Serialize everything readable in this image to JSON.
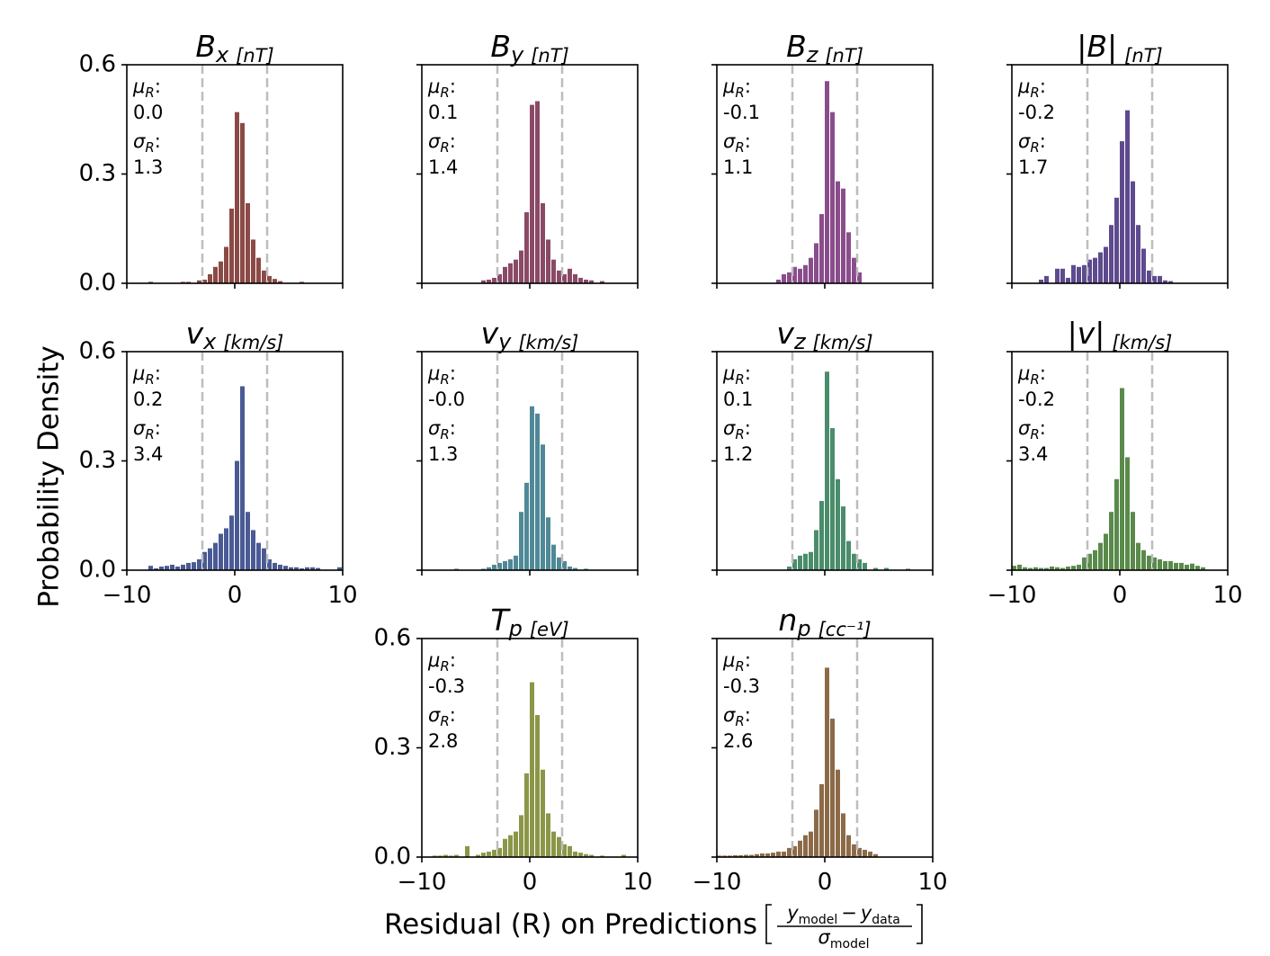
{
  "figure": {
    "ylabel": "Probability Density",
    "xlabel_text": "Residual (R) on Predictions",
    "xlabel_formula": {
      "numerator_main": "y",
      "numerator_main_sub": "model",
      "minus": "−",
      "numerator_second": "y",
      "numerator_second_sub": "data",
      "denominator": "σ",
      "denominator_sub": "model"
    },
    "stat_labels": {
      "mu": "μ",
      "sigma": "σ",
      "sub": "R",
      "colon": ":"
    }
  },
  "chart_data": [
    {
      "type": "bar",
      "symbol": "B",
      "subscript": "x",
      "unit": "[nT]",
      "color": "#8b4a45",
      "mu_R": "0.0",
      "sigma_R": "1.3",
      "xlim": [
        -10,
        10
      ],
      "ylim": [
        0,
        0.6
      ],
      "xticks": [
        -10,
        0,
        10
      ],
      "yticks": [
        0.0,
        0.3,
        0.6
      ],
      "threshold_lines": [
        -3,
        3
      ],
      "bin_width": 0.5,
      "bins": [
        [
          -8,
          0.004
        ],
        [
          -5,
          0.004
        ],
        [
          -4.5,
          0.004
        ],
        [
          -3.5,
          0.008
        ],
        [
          -3,
          0.01
        ],
        [
          -2.5,
          0.025
        ],
        [
          -2,
          0.045
        ],
        [
          -1.5,
          0.06
        ],
        [
          -1,
          0.1
        ],
        [
          -0.5,
          0.205
        ],
        [
          0,
          0.47
        ],
        [
          0.5,
          0.44
        ],
        [
          1,
          0.22
        ],
        [
          1.5,
          0.12
        ],
        [
          2,
          0.07
        ],
        [
          2.5,
          0.035
        ],
        [
          3,
          0.02
        ],
        [
          3.5,
          0.012
        ],
        [
          4,
          0.006
        ],
        [
          6,
          0.004
        ]
      ]
    },
    {
      "type": "bar",
      "symbol": "B",
      "subscript": "y",
      "unit": "[nT]",
      "color": "#8a4a66",
      "mu_R": "0.1",
      "sigma_R": "1.4",
      "xlim": [
        -10,
        10
      ],
      "ylim": [
        0,
        0.6
      ],
      "xticks": [
        -10,
        0,
        10
      ],
      "yticks": [
        0.0,
        0.3,
        0.6
      ],
      "threshold_lines": [
        -3,
        3
      ],
      "bin_width": 0.5,
      "bins": [
        [
          -4.5,
          0.008
        ],
        [
          -4,
          0.01
        ],
        [
          -3.5,
          0.015
        ],
        [
          -3,
          0.025
        ],
        [
          -2.5,
          0.045
        ],
        [
          -2,
          0.055
        ],
        [
          -1.5,
          0.065
        ],
        [
          -1,
          0.09
        ],
        [
          -0.5,
          0.195
        ],
        [
          0,
          0.49
        ],
        [
          0.5,
          0.5
        ],
        [
          1,
          0.22
        ],
        [
          1.5,
          0.12
        ],
        [
          2,
          0.065
        ],
        [
          2.5,
          0.035
        ],
        [
          3,
          0.025
        ],
        [
          3.5,
          0.04
        ],
        [
          4,
          0.025
        ],
        [
          4.5,
          0.015
        ],
        [
          5,
          0.01
        ],
        [
          5.5,
          0.008
        ],
        [
          6.5,
          0.006
        ]
      ]
    },
    {
      "type": "bar",
      "symbol": "B",
      "subscript": "z",
      "unit": "[nT]",
      "color": "#8a4d8c",
      "mu_R": "-0.1",
      "sigma_R": "1.1",
      "xlim": [
        -10,
        10
      ],
      "ylim": [
        0,
        0.6
      ],
      "xticks": [
        -10,
        0,
        10
      ],
      "yticks": [
        0.0,
        0.3,
        0.6
      ],
      "threshold_lines": [
        -3,
        3
      ],
      "bin_width": 0.5,
      "bins": [
        [
          -4.5,
          0.01
        ],
        [
          -4,
          0.025
        ],
        [
          -3.5,
          0.03
        ],
        [
          -3,
          0.045
        ],
        [
          -2.5,
          0.04
        ],
        [
          -2,
          0.05
        ],
        [
          -1.5,
          0.07
        ],
        [
          -1,
          0.11
        ],
        [
          -0.5,
          0.19
        ],
        [
          0,
          0.555
        ],
        [
          0.5,
          0.47
        ],
        [
          1,
          0.28
        ],
        [
          1.5,
          0.26
        ],
        [
          2,
          0.14
        ],
        [
          2.5,
          0.07
        ],
        [
          3,
          0.03
        ]
      ]
    },
    {
      "type": "bar",
      "symbol": "|B|",
      "subscript": "",
      "unit": "[nT]",
      "color": "#5e4a8e",
      "mu_R": "-0.2",
      "sigma_R": "1.7",
      "xlim": [
        -10,
        10
      ],
      "ylim": [
        0,
        0.6
      ],
      "xticks": [
        -10,
        0,
        10
      ],
      "yticks": [
        0.0,
        0.3,
        0.6
      ],
      "threshold_lines": [
        -3,
        3
      ],
      "bin_width": 0.5,
      "bins": [
        [
          -7.5,
          0.01
        ],
        [
          -7,
          0.02
        ],
        [
          -6,
          0.04
        ],
        [
          -5.5,
          0.04
        ],
        [
          -5,
          0.015
        ],
        [
          -4.5,
          0.05
        ],
        [
          -4,
          0.045
        ],
        [
          -3.5,
          0.05
        ],
        [
          -3,
          0.065
        ],
        [
          -2.5,
          0.07
        ],
        [
          -2,
          0.085
        ],
        [
          -1.5,
          0.1
        ],
        [
          -1,
          0.16
        ],
        [
          -0.5,
          0.235
        ],
        [
          0,
          0.39
        ],
        [
          0.5,
          0.475
        ],
        [
          1,
          0.28
        ],
        [
          1.5,
          0.16
        ],
        [
          2,
          0.095
        ],
        [
          2.5,
          0.035
        ],
        [
          3,
          0.02
        ],
        [
          3.5,
          0.02
        ],
        [
          4,
          0.008
        ],
        [
          4.5,
          0.006
        ]
      ]
    },
    {
      "type": "bar",
      "symbol": "v",
      "subscript": "x",
      "unit": "[km/s]",
      "color": "#4a5a95",
      "mu_R": "0.2",
      "sigma_R": "3.4",
      "xlim": [
        -10,
        10
      ],
      "ylim": [
        0,
        0.6
      ],
      "xticks": [
        -10,
        0,
        10
      ],
      "yticks": [
        0.0,
        0.3,
        0.6
      ],
      "threshold_lines": [
        -3,
        3
      ],
      "bin_width": 0.5,
      "bins": [
        [
          -8,
          0.012
        ],
        [
          -7.5,
          0.005
        ],
        [
          -7,
          0.01
        ],
        [
          -6.5,
          0.012
        ],
        [
          -6,
          0.015
        ],
        [
          -5.5,
          0.01
        ],
        [
          -5,
          0.015
        ],
        [
          -4.5,
          0.02
        ],
        [
          -4,
          0.022
        ],
        [
          -3.5,
          0.03
        ],
        [
          -3,
          0.05
        ],
        [
          -2.5,
          0.06
        ],
        [
          -2,
          0.075
        ],
        [
          -1.5,
          0.1
        ],
        [
          -1,
          0.115
        ],
        [
          -0.5,
          0.15
        ],
        [
          0,
          0.3
        ],
        [
          0.5,
          0.505
        ],
        [
          1,
          0.16
        ],
        [
          1.5,
          0.11
        ],
        [
          2,
          0.075
        ],
        [
          2.5,
          0.06
        ],
        [
          3,
          0.03
        ],
        [
          3.5,
          0.02
        ],
        [
          4,
          0.015
        ],
        [
          4.5,
          0.012
        ],
        [
          5,
          0.008
        ],
        [
          5.5,
          0.008
        ],
        [
          6,
          0.005
        ],
        [
          6.5,
          0.008
        ],
        [
          7,
          0.008
        ],
        [
          7.5,
          0.006
        ],
        [
          9.5,
          0.008
        ]
      ]
    },
    {
      "type": "bar",
      "symbol": "v",
      "subscript": "y",
      "unit": "[km/s]",
      "color": "#4f8896",
      "mu_R": "-0.0",
      "sigma_R": "1.3",
      "xlim": [
        -10,
        10
      ],
      "ylim": [
        0,
        0.6
      ],
      "xticks": [
        -10,
        0,
        10
      ],
      "yticks": [
        0.0,
        0.3,
        0.6
      ],
      "threshold_lines": [
        -3,
        3
      ],
      "bin_width": 0.5,
      "bins": [
        [
          -7,
          0.004
        ],
        [
          -4.5,
          0.004
        ],
        [
          -4,
          0.008
        ],
        [
          -3.5,
          0.015
        ],
        [
          -3,
          0.02
        ],
        [
          -2.5,
          0.025
        ],
        [
          -2,
          0.03
        ],
        [
          -1.5,
          0.04
        ],
        [
          -1,
          0.16
        ],
        [
          -0.5,
          0.24
        ],
        [
          0,
          0.45
        ],
        [
          0.5,
          0.43
        ],
        [
          1,
          0.345
        ],
        [
          1.5,
          0.145
        ],
        [
          2,
          0.07
        ],
        [
          2.5,
          0.035
        ],
        [
          3,
          0.025
        ],
        [
          3.5,
          0.01
        ],
        [
          4,
          0.006
        ],
        [
          5,
          0.004
        ]
      ]
    },
    {
      "type": "bar",
      "symbol": "v",
      "subscript": "z",
      "unit": "[km/s]",
      "color": "#4a8c6b",
      "mu_R": "0.1",
      "sigma_R": "1.2",
      "xlim": [
        -10,
        10
      ],
      "ylim": [
        0,
        0.6
      ],
      "xticks": [
        -10,
        0,
        10
      ],
      "yticks": [
        0.0,
        0.3,
        0.6
      ],
      "threshold_lines": [
        -3,
        3
      ],
      "bin_width": 0.5,
      "bins": [
        [
          -3.5,
          0.01
        ],
        [
          -3,
          0.03
        ],
        [
          -2.5,
          0.04
        ],
        [
          -2,
          0.045
        ],
        [
          -1.5,
          0.05
        ],
        [
          -1,
          0.11
        ],
        [
          -0.5,
          0.19
        ],
        [
          0,
          0.545
        ],
        [
          0.5,
          0.39
        ],
        [
          1,
          0.25
        ],
        [
          1.5,
          0.175
        ],
        [
          2,
          0.08
        ],
        [
          2.5,
          0.045
        ],
        [
          3,
          0.03
        ],
        [
          3.5,
          0.02
        ],
        [
          4.5,
          0.006
        ],
        [
          5.5,
          0.006
        ],
        [
          7.5,
          0.004
        ]
      ]
    },
    {
      "type": "bar",
      "symbol": "|v|",
      "subscript": "",
      "unit": "[km/s]",
      "color": "#5a8a4b",
      "mu_R": "-0.2",
      "sigma_R": "3.4",
      "xlim": [
        -10,
        10
      ],
      "ylim": [
        0,
        0.6
      ],
      "xticks": [
        -10,
        0,
        10
      ],
      "yticks": [
        0.0,
        0.3,
        0.6
      ],
      "threshold_lines": [
        -3,
        3
      ],
      "bin_width": 0.5,
      "bins": [
        [
          -10,
          0.012
        ],
        [
          -9.5,
          0.015
        ],
        [
          -9,
          0.008
        ],
        [
          -8.5,
          0.006
        ],
        [
          -8,
          0.008
        ],
        [
          -7.5,
          0.006
        ],
        [
          -7,
          0.006
        ],
        [
          -6.5,
          0.01
        ],
        [
          -6,
          0.008
        ],
        [
          -5.5,
          0.006
        ],
        [
          -5,
          0.01
        ],
        [
          -4.5,
          0.012
        ],
        [
          -4,
          0.015
        ],
        [
          -3.5,
          0.035
        ],
        [
          -3,
          0.045
        ],
        [
          -2.5,
          0.055
        ],
        [
          -2,
          0.075
        ],
        [
          -1.5,
          0.1
        ],
        [
          -1,
          0.16
        ],
        [
          -0.5,
          0.25
        ],
        [
          0,
          0.5
        ],
        [
          0.5,
          0.31
        ],
        [
          1,
          0.16
        ],
        [
          1.5,
          0.075
        ],
        [
          2,
          0.055
        ],
        [
          2.5,
          0.04
        ],
        [
          3,
          0.035
        ],
        [
          3.5,
          0.03
        ],
        [
          4,
          0.025
        ],
        [
          4.5,
          0.025
        ],
        [
          5,
          0.02
        ],
        [
          5.5,
          0.02
        ],
        [
          6,
          0.015
        ],
        [
          6.5,
          0.018
        ],
        [
          7,
          0.012
        ],
        [
          7.5,
          0.008
        ]
      ]
    },
    {
      "type": "bar",
      "symbol": "T",
      "subscript": "p",
      "unit": "[eV]",
      "color": "#8c9648",
      "mu_R": "-0.3",
      "sigma_R": "2.8",
      "xlim": [
        -10,
        10
      ],
      "ylim": [
        0,
        0.6
      ],
      "xticks": [
        -10,
        0,
        10
      ],
      "yticks": [
        0.0,
        0.3,
        0.6
      ],
      "threshold_lines": [
        -3,
        3
      ],
      "bin_width": 0.5,
      "bins": [
        [
          -9,
          0.004
        ],
        [
          -8.5,
          0.004
        ],
        [
          -8,
          0.006
        ],
        [
          -7.5,
          0.004
        ],
        [
          -7,
          0.006
        ],
        [
          -6,
          0.03
        ],
        [
          -5,
          0.006
        ],
        [
          -4.5,
          0.012
        ],
        [
          -4,
          0.015
        ],
        [
          -3.5,
          0.02
        ],
        [
          -3,
          0.025
        ],
        [
          -2.5,
          0.05
        ],
        [
          -2,
          0.06
        ],
        [
          -1.5,
          0.07
        ],
        [
          -1,
          0.115
        ],
        [
          -0.5,
          0.23
        ],
        [
          0,
          0.48
        ],
        [
          0.5,
          0.39
        ],
        [
          1,
          0.24
        ],
        [
          1.5,
          0.12
        ],
        [
          2,
          0.07
        ],
        [
          2.5,
          0.055
        ],
        [
          3,
          0.035
        ],
        [
          3.5,
          0.03
        ],
        [
          4,
          0.015
        ],
        [
          4.5,
          0.012
        ],
        [
          5,
          0.008
        ],
        [
          5.5,
          0.006
        ],
        [
          6.5,
          0.004
        ],
        [
          8.5,
          0.006
        ]
      ]
    },
    {
      "type": "bar",
      "symbol": "n",
      "subscript": "p",
      "unit": "[cc⁻¹]",
      "color": "#8c6a48",
      "mu_R": "-0.3",
      "sigma_R": "2.6",
      "xlim": [
        -10,
        10
      ],
      "ylim": [
        0,
        0.6
      ],
      "xticks": [
        -10,
        0,
        10
      ],
      "yticks": [
        0.0,
        0.3,
        0.6
      ],
      "threshold_lines": [
        -3,
        3
      ],
      "bin_width": 0.5,
      "bins": [
        [
          -10,
          0.004
        ],
        [
          -9.5,
          0.004
        ],
        [
          -9,
          0.004
        ],
        [
          -8.5,
          0.005
        ],
        [
          -8,
          0.005
        ],
        [
          -7.5,
          0.006
        ],
        [
          -7,
          0.006
        ],
        [
          -6.5,
          0.008
        ],
        [
          -6,
          0.01
        ],
        [
          -5.5,
          0.01
        ],
        [
          -5,
          0.012
        ],
        [
          -4.5,
          0.015
        ],
        [
          -4,
          0.015
        ],
        [
          -3.5,
          0.025
        ],
        [
          -3,
          0.03
        ],
        [
          -2.5,
          0.045
        ],
        [
          -2,
          0.06
        ],
        [
          -1.5,
          0.07
        ],
        [
          -1,
          0.13
        ],
        [
          -0.5,
          0.2
        ],
        [
          0,
          0.52
        ],
        [
          0.5,
          0.38
        ],
        [
          1,
          0.24
        ],
        [
          1.5,
          0.12
        ],
        [
          2,
          0.06
        ],
        [
          2.5,
          0.035
        ],
        [
          3,
          0.025
        ],
        [
          3.5,
          0.02
        ],
        [
          4,
          0.015
        ],
        [
          4.5,
          0.008
        ]
      ]
    }
  ]
}
